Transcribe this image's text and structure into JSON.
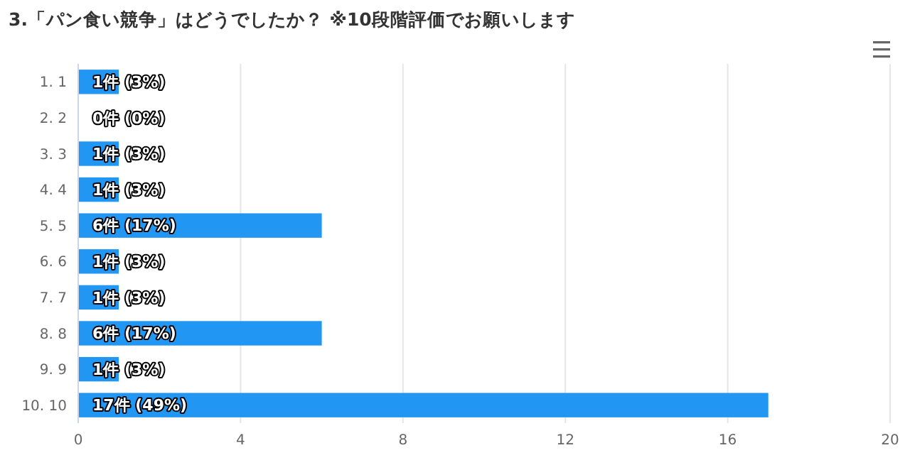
{
  "chart_data": {
    "type": "bar",
    "orientation": "horizontal",
    "title": "3.「パン食い競争」はどうでしたか？ ※10段階評価でお願いします",
    "categories": [
      "1. 1",
      "2. 2",
      "3. 3",
      "4. 4",
      "5. 5",
      "6. 6",
      "7. 7",
      "8. 8",
      "9. 9",
      "10. 10"
    ],
    "values": [
      1,
      0,
      1,
      1,
      6,
      1,
      1,
      6,
      1,
      17
    ],
    "value_labels": [
      "1件 (3%)",
      "0件 (0%)",
      "1件 (3%)",
      "1件 (3%)",
      "6件 (17%)",
      "1件 (3%)",
      "1件 (3%)",
      "6件 (17%)",
      "1件 (3%)",
      "17件 (49%)"
    ],
    "color": "#2196f3",
    "xlim": [
      0,
      20
    ],
    "xticks": [
      0,
      4,
      8,
      12,
      16,
      20
    ],
    "grid": "x"
  }
}
